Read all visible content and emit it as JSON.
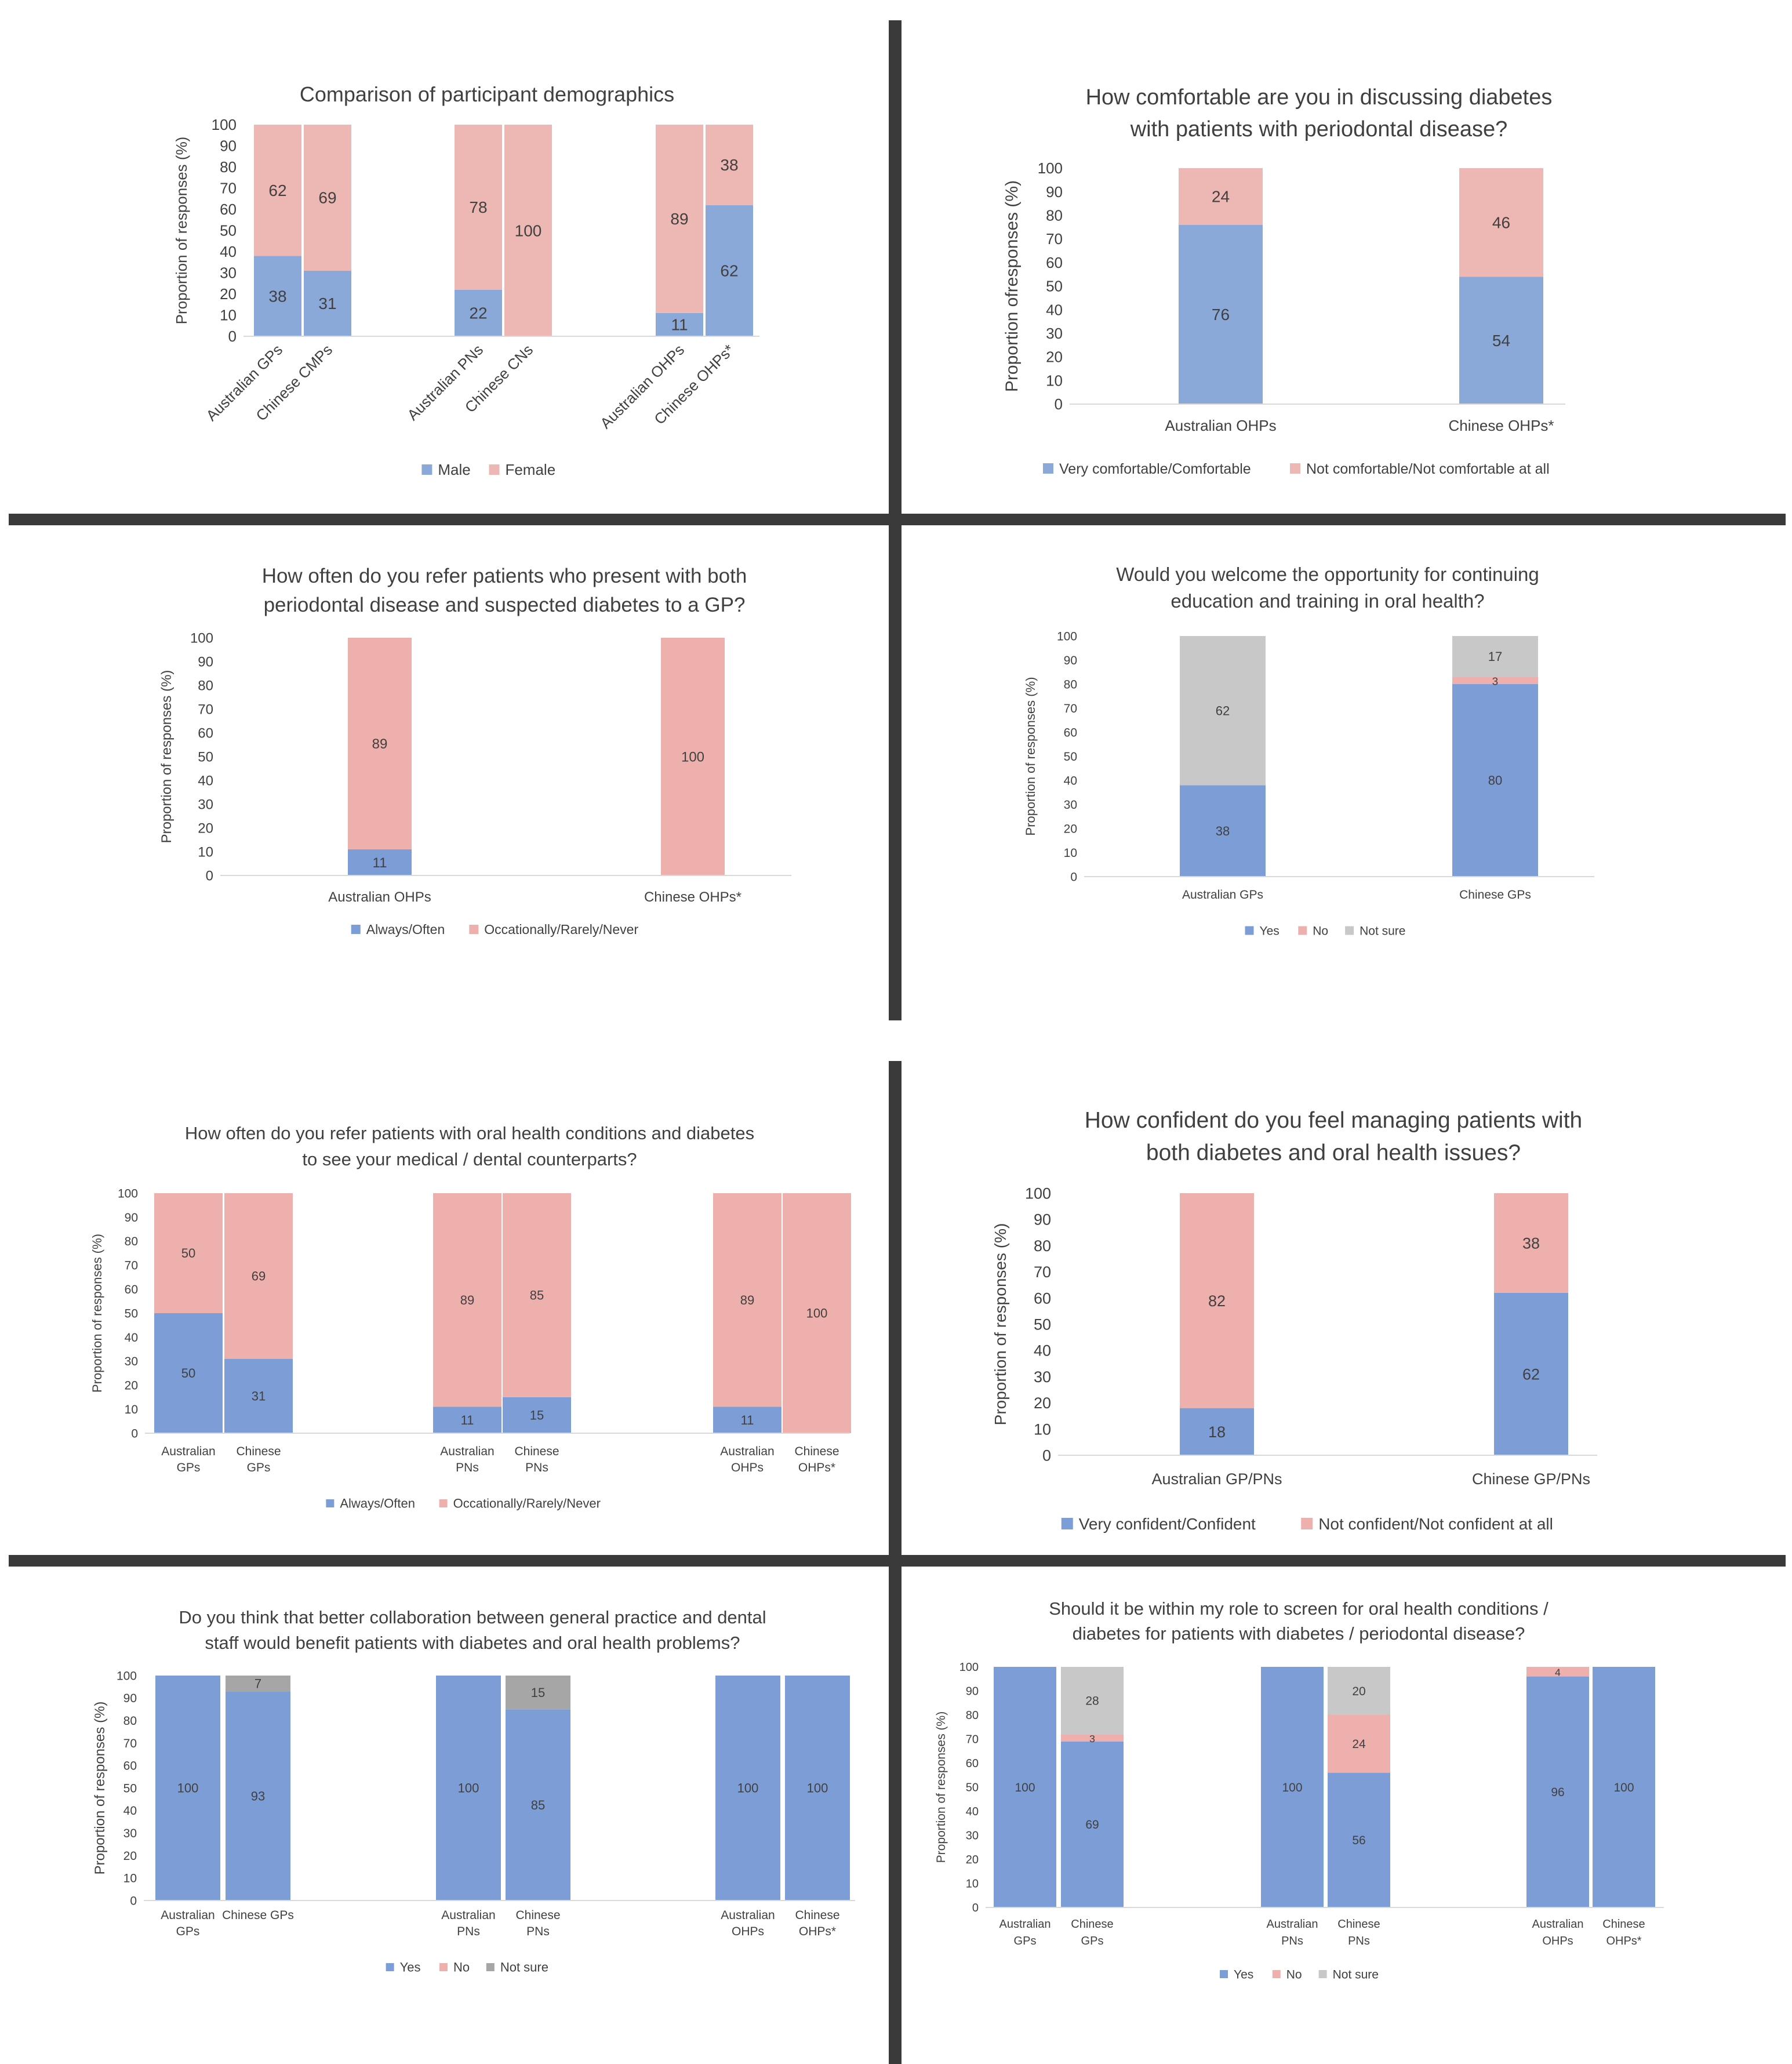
{
  "colors": {
    "male": "#8AA8D8",
    "female": "#EDB8B3",
    "blue": "#7D9DD6",
    "pink": "#EEB0AC",
    "grey": "#C8C8C8",
    "dark_grey": "#A6A6A6",
    "divider": "#3A3A3A"
  },
  "chart_data": [
    {
      "type": "bar",
      "stacked": true,
      "title": [
        "Comparison of participant demographics"
      ],
      "ylabel": "Proportion of responses (%)",
      "ylim": [
        0,
        100
      ],
      "yticks": [
        0,
        10,
        20,
        30,
        40,
        50,
        60,
        70,
        80,
        90,
        100
      ],
      "categories": [
        "Australian GPs",
        "Chinese CMPs",
        "Australian PNs",
        "Chinese CNs",
        "Australian OHPs",
        "Chinese OHPs*"
      ],
      "series": [
        {
          "name": "Male",
          "color_key": "male",
          "values": [
            38,
            31,
            22,
            0,
            11,
            62
          ]
        },
        {
          "name": "Female",
          "color_key": "female",
          "values": [
            62,
            69,
            78,
            100,
            89,
            38
          ]
        }
      ],
      "legend_position": "bottom",
      "grid": false
    },
    {
      "type": "bar",
      "stacked": true,
      "title": [
        "How comfortable are you in discussing diabetes",
        "with patients with periodontal disease?"
      ],
      "ylabel": "Proportion ofresponses (%)",
      "ylim": [
        0,
        100
      ],
      "yticks": [
        0,
        10,
        20,
        30,
        40,
        50,
        60,
        70,
        80,
        90,
        100
      ],
      "categories": [
        "Australian OHPs",
        "Chinese OHPs*"
      ],
      "series": [
        {
          "name": "Very comfortable/Comfortable",
          "color_key": "male",
          "values": [
            76,
            54
          ]
        },
        {
          "name": "Not comfortable/Not comfortable at all",
          "color_key": "female",
          "values": [
            24,
            46
          ]
        }
      ],
      "legend_position": "bottom",
      "grid": false
    },
    {
      "type": "bar",
      "stacked": true,
      "title": [
        "How often do you refer patients who present with both",
        "periodontal disease and suspected diabetes to a GP?"
      ],
      "ylabel": "Proportion of responses (%)",
      "ylim": [
        0,
        100
      ],
      "yticks": [
        0,
        10,
        20,
        30,
        40,
        50,
        60,
        70,
        80,
        90,
        100
      ],
      "categories": [
        "Australian OHPs",
        "Chinese OHPs*"
      ],
      "series": [
        {
          "name": "Always/Often",
          "color_key": "blue",
          "values": [
            11,
            0
          ]
        },
        {
          "name": "Occationally/Rarely/Never",
          "color_key": "pink",
          "values": [
            89,
            100
          ]
        }
      ],
      "legend_position": "bottom",
      "grid": false
    },
    {
      "type": "bar",
      "stacked": true,
      "title": [
        "Would you welcome the opportunity for continuing",
        "education and training in oral health?"
      ],
      "ylabel": "Proportion of responses (%)",
      "ylim": [
        0,
        100
      ],
      "yticks": [
        0,
        10,
        20,
        30,
        40,
        50,
        60,
        70,
        80,
        90,
        100
      ],
      "categories": [
        "Australian GPs",
        "Chinese GPs"
      ],
      "series": [
        {
          "name": "Yes",
          "color_key": "blue",
          "values": [
            38,
            80
          ]
        },
        {
          "name": "No",
          "color_key": "pink",
          "values": [
            0,
            3
          ]
        },
        {
          "name": "Not sure",
          "color_key": "grey",
          "values": [
            62,
            17
          ]
        }
      ],
      "legend_position": "bottom",
      "grid": false
    },
    {
      "type": "bar",
      "stacked": true,
      "title": [
        "How often do you refer patients with oral health conditions and diabetes",
        "to see your medical / dental counterparts?"
      ],
      "ylabel": "Proportion of responses (%)",
      "ylim": [
        0,
        100
      ],
      "yticks": [
        0,
        10,
        20,
        30,
        40,
        50,
        60,
        70,
        80,
        90,
        100
      ],
      "categories": [
        [
          "Australian",
          "GPs"
        ],
        [
          "Chinese",
          "GPs"
        ],
        [
          "Australian",
          "PNs"
        ],
        [
          "Chinese",
          "PNs"
        ],
        [
          "Australian",
          "OHPs"
        ],
        [
          "Chinese",
          "OHPs*"
        ]
      ],
      "series": [
        {
          "name": "Always/Often",
          "color_key": "blue",
          "values": [
            50,
            31,
            11,
            15,
            11,
            0
          ]
        },
        {
          "name": "Occationally/Rarely/Never",
          "color_key": "pink",
          "values": [
            50,
            69,
            89,
            85,
            89,
            100
          ]
        }
      ],
      "legend_position": "bottom",
      "grid": false
    },
    {
      "type": "bar",
      "stacked": true,
      "title": [
        "How confident do you feel managing patients with",
        "both diabetes and oral health issues?"
      ],
      "ylabel": "Proportion of responses (%)",
      "ylim": [
        0,
        100
      ],
      "yticks": [
        0,
        10,
        20,
        30,
        40,
        50,
        60,
        70,
        80,
        90,
        100
      ],
      "categories": [
        "Australian GP/PNs",
        "Chinese GP/PNs"
      ],
      "series": [
        {
          "name": "Very confident/Confident",
          "color_key": "blue",
          "values": [
            18,
            62
          ]
        },
        {
          "name": "Not confident/Not confident at all",
          "color_key": "pink",
          "values": [
            82,
            38
          ]
        }
      ],
      "legend_position": "bottom",
      "grid": false
    },
    {
      "type": "bar",
      "stacked": true,
      "title": [
        "Do you think that better collaboration between general practice and dental",
        "staff would benefit patients with diabetes and oral health problems?"
      ],
      "ylabel": "Proportion of responses (%)",
      "ylim": [
        0,
        100
      ],
      "yticks": [
        0,
        10,
        20,
        30,
        40,
        50,
        60,
        70,
        80,
        90,
        100
      ],
      "categories": [
        [
          "Australian",
          "GPs"
        ],
        [
          "Chinese GPs"
        ],
        [
          "Australian",
          "PNs"
        ],
        [
          "Chinese",
          "PNs"
        ],
        [
          "Australian",
          "OHPs"
        ],
        [
          "Chinese",
          "OHPs*"
        ]
      ],
      "series": [
        {
          "name": "Yes",
          "color_key": "blue",
          "values": [
            100,
            93,
            100,
            85,
            100,
            100
          ]
        },
        {
          "name": "No",
          "color_key": "pink",
          "values": [
            0,
            0,
            0,
            0,
            0,
            0
          ]
        },
        {
          "name": "Not sure",
          "color_key": "dark_grey",
          "values": [
            0,
            7,
            0,
            15,
            0,
            0
          ]
        }
      ],
      "legend_position": "bottom",
      "grid": false
    },
    {
      "type": "bar",
      "stacked": true,
      "title": [
        "Should it be within my role to screen for oral health conditions /",
        "diabetes for patients with diabetes / periodontal disease?"
      ],
      "ylabel": "Proportion of responses (%)",
      "ylim": [
        0,
        100
      ],
      "yticks": [
        0,
        10,
        20,
        30,
        40,
        50,
        60,
        70,
        80,
        90,
        100
      ],
      "categories": [
        [
          "Australian",
          "GPs"
        ],
        [
          "Chinese",
          "GPs"
        ],
        [
          "Australian",
          "PNs"
        ],
        [
          "Chinese",
          "PNs"
        ],
        [
          "Australian",
          "OHPs"
        ],
        [
          "Chinese",
          "OHPs*"
        ]
      ],
      "series": [
        {
          "name": "Yes",
          "color_key": "blue",
          "values": [
            100,
            69,
            100,
            56,
            96,
            100
          ]
        },
        {
          "name": "No",
          "color_key": "pink",
          "values": [
            0,
            3,
            0,
            24,
            4,
            0
          ]
        },
        {
          "name": "Not sure",
          "color_key": "grey",
          "values": [
            0,
            28,
            0,
            20,
            0,
            0
          ]
        }
      ],
      "legend_position": "bottom",
      "grid": false
    }
  ]
}
